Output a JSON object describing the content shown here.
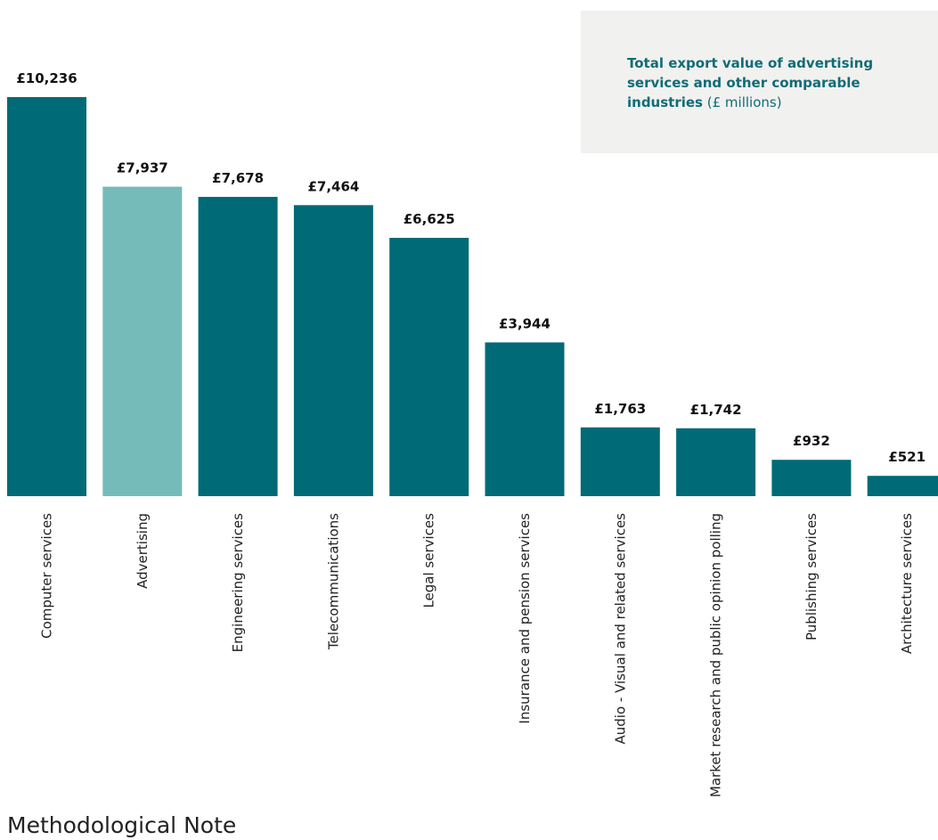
{
  "legend": {
    "title": "Total export value of advertising services and other comparable industries",
    "unit": "(£ millions)"
  },
  "footer": {
    "heading": "Methodological Note"
  },
  "colors": {
    "bar": "#016a77",
    "highlight": "#74bbb9",
    "label": "#111111",
    "axis_text": "#222222"
  },
  "chart_data": {
    "type": "bar",
    "categories": [
      "Computer services",
      "Advertising",
      "Engineering services",
      "Telecommunications",
      "Legal services",
      "Insurance and pension services",
      "Audio - Visual and related services",
      "Market research and public opinion polling",
      "Publishing services",
      "Architecture services"
    ],
    "values": [
      10236,
      7937,
      7678,
      7464,
      6625,
      3944,
      1763,
      1742,
      932,
      521
    ],
    "data_labels": [
      "£10,236",
      "£7,937",
      "£7,678",
      "£7,464",
      "£6,625",
      "£3,944",
      "£1,763",
      "£1,742",
      "£932",
      "£521"
    ],
    "highlight_category": "Advertising",
    "ylim": [
      0,
      10236
    ],
    "grid": false,
    "legend_position": "top-right"
  }
}
